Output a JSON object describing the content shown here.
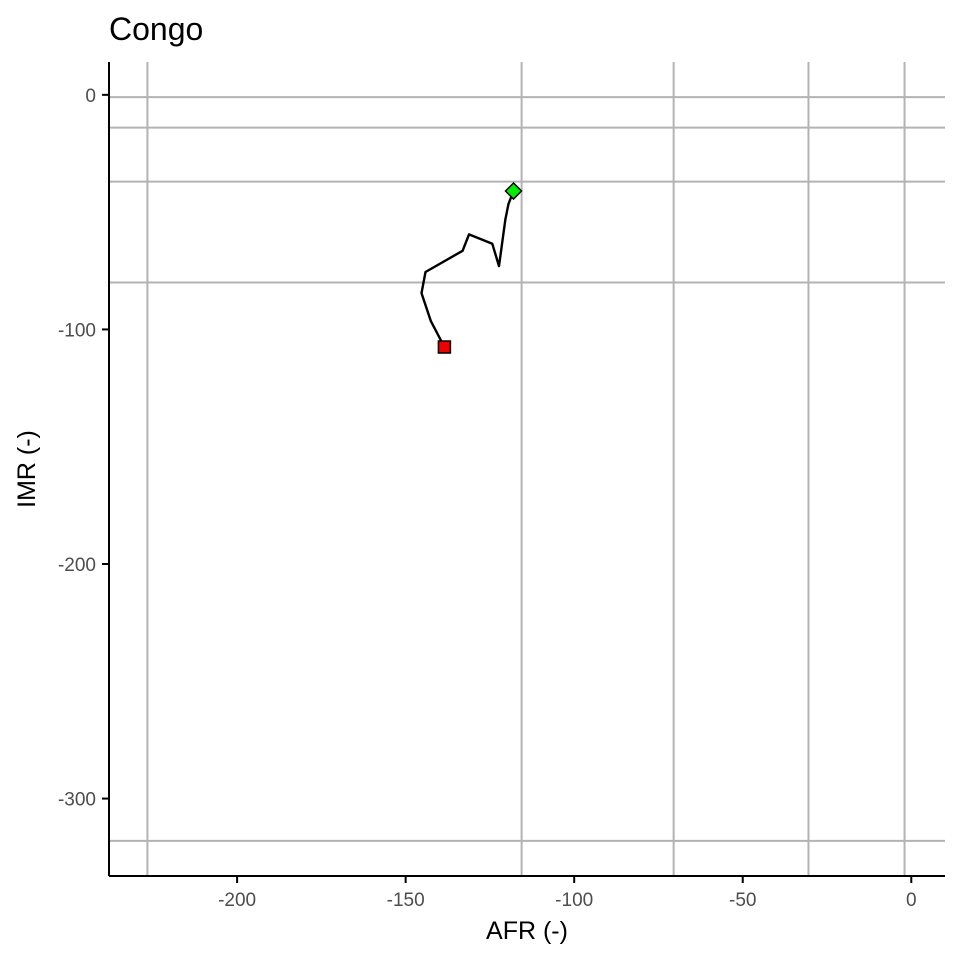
{
  "chart_data": {
    "type": "line",
    "title": "Congo",
    "xlabel": "AFR (-)",
    "ylabel": "IMR (-)",
    "xlim": [
      -238,
      10
    ],
    "ylim": [
      -333,
      14
    ],
    "x_ticks": [
      -200,
      -150,
      -100,
      -50,
      0
    ],
    "y_ticks": [
      0,
      -100,
      -200,
      -300
    ],
    "grid": "on",
    "reference_lines": {
      "vertical_x": [
        -226.6,
        -115.6,
        -70.5,
        -30.5,
        -2
      ],
      "horizontal_y": [
        -1,
        -14,
        -37,
        -80,
        -318
      ]
    },
    "series": [
      {
        "x": [
          -118.0,
          -119.5,
          -120.4,
          -122.3,
          -124.3,
          -131.2,
          -133.1,
          -144.1,
          -145.3,
          -142.5,
          -138.5
        ],
        "y": [
          -41.0,
          -46.5,
          -53.0,
          -73.0,
          -63.5,
          -59.5,
          -66.5,
          -75.5,
          -84.5,
          -96.5,
          -107.5
        ],
        "color": "#000000"
      }
    ],
    "markers": [
      {
        "role": "start",
        "x": -118.0,
        "y": -41.0,
        "shape": "diamond",
        "color": "#00ee00"
      },
      {
        "role": "end",
        "x": -138.5,
        "y": -107.5,
        "shape": "square",
        "color": "#ee0000"
      }
    ]
  }
}
